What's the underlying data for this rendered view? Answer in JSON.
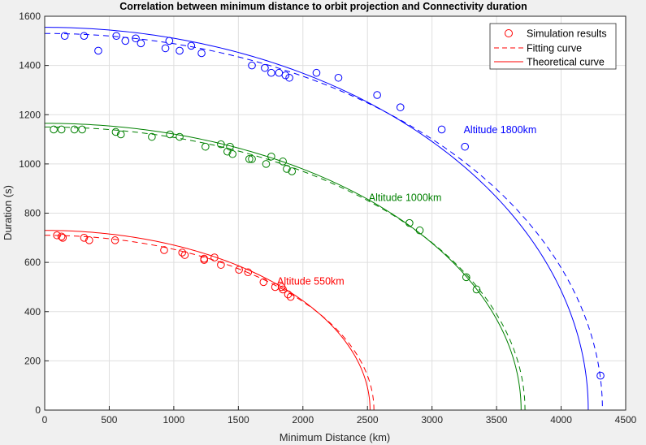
{
  "chart_data": {
    "type": "line",
    "title": "Correlation between minimum distance to orbit projection and Connectivity duration",
    "xlabel": "Minimum Distance (km)",
    "ylabel": "Duration (s)",
    "xlim": [
      0,
      4500
    ],
    "ylim": [
      0,
      1600
    ],
    "xticks": [
      "0",
      "500",
      "1000",
      "1500",
      "2000",
      "2500",
      "3000",
      "3500",
      "4000",
      "4500"
    ],
    "yticks": [
      "0",
      "200",
      "400",
      "600",
      "800",
      "1000",
      "1200",
      "1400",
      "1600"
    ],
    "grid": true,
    "legend_position": "top-right",
    "legend": {
      "sim": "Simulation results",
      "fit": "Fitting curve",
      "theory": "Theoretical curve"
    },
    "series": [
      {
        "label": "Altitude 550km",
        "color": "#ff0000",
        "label_at": [
          1800,
          510
        ],
        "theory": {
          "y0": 730,
          "x_max": 2520
        },
        "fit": {
          "y0": 710,
          "x_max": 2550
        },
        "points": [
          [
            95,
            710
          ],
          [
            140,
            700
          ],
          [
            130,
            705
          ],
          [
            305,
            700
          ],
          [
            345,
            690
          ],
          [
            545,
            690
          ],
          [
            925,
            650
          ],
          [
            1065,
            640
          ],
          [
            1085,
            630
          ],
          [
            1235,
            610
          ],
          [
            1235,
            615
          ],
          [
            1315,
            620
          ],
          [
            1365,
            590
          ],
          [
            1505,
            570
          ],
          [
            1575,
            560
          ],
          [
            1695,
            520
          ],
          [
            1785,
            500
          ],
          [
            1835,
            500
          ],
          [
            1845,
            490
          ],
          [
            1885,
            470
          ],
          [
            1905,
            460
          ]
        ]
      },
      {
        "label": "Altitude 1000km",
        "color": "#008000",
        "label_at": [
          2510,
          850
        ],
        "theory": {
          "y0": 1165,
          "x_max": 3690
        },
        "fit": {
          "y0": 1150,
          "x_max": 3720
        },
        "points": [
          [
            70,
            1140
          ],
          [
            130,
            1140
          ],
          [
            230,
            1140
          ],
          [
            290,
            1140
          ],
          [
            550,
            1130
          ],
          [
            590,
            1120
          ],
          [
            830,
            1110
          ],
          [
            970,
            1120
          ],
          [
            1045,
            1110
          ],
          [
            1245,
            1070
          ],
          [
            1365,
            1080
          ],
          [
            1415,
            1050
          ],
          [
            1435,
            1070
          ],
          [
            1455,
            1040
          ],
          [
            1585,
            1020
          ],
          [
            1605,
            1020
          ],
          [
            1715,
            1000
          ],
          [
            1755,
            1030
          ],
          [
            1845,
            1010
          ],
          [
            1875,
            980
          ],
          [
            1915,
            970
          ],
          [
            2825,
            760
          ],
          [
            2905,
            730
          ],
          [
            3265,
            540
          ],
          [
            3345,
            490
          ]
        ]
      },
      {
        "label": "Altitude 1800km",
        "color": "#0000ff",
        "label_at": [
          3245,
          1125
        ],
        "theory": {
          "y0": 1555,
          "x_max": 4210
        },
        "fit": {
          "y0": 1530,
          "x_max": 4320
        },
        "points": [
          [
            155,
            1520
          ],
          [
            305,
            1520
          ],
          [
            415,
            1460
          ],
          [
            555,
            1520
          ],
          [
            625,
            1500
          ],
          [
            705,
            1510
          ],
          [
            745,
            1490
          ],
          [
            935,
            1470
          ],
          [
            965,
            1500
          ],
          [
            1045,
            1460
          ],
          [
            1135,
            1480
          ],
          [
            1215,
            1450
          ],
          [
            1605,
            1400
          ],
          [
            1705,
            1390
          ],
          [
            1755,
            1370
          ],
          [
            1815,
            1370
          ],
          [
            1865,
            1360
          ],
          [
            1895,
            1350
          ],
          [
            2105,
            1370
          ],
          [
            2275,
            1350
          ],
          [
            2575,
            1280
          ],
          [
            2755,
            1230
          ],
          [
            3075,
            1140
          ],
          [
            3255,
            1070
          ],
          [
            4305,
            140
          ]
        ]
      }
    ]
  }
}
